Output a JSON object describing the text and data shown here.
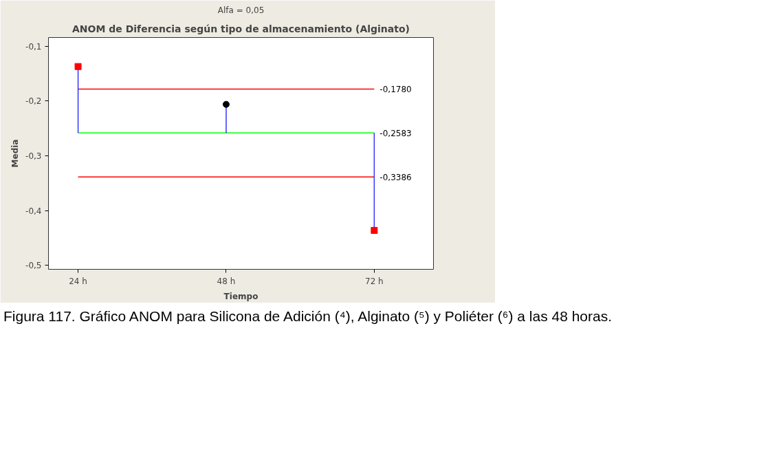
{
  "chart_data": {
    "type": "scatter",
    "title": "ANOM de Diferencia según tipo de almacenamiento (Alginato)",
    "subtitle": "Alfa = 0,05",
    "xlabel": "Tiempo",
    "ylabel": "Media",
    "categories": [
      "24 h",
      "48 h",
      "72 h"
    ],
    "series": [
      {
        "color": "#ff0000",
        "marker": "square",
        "values": [
          -0.137,
          null,
          -0.436
        ],
        "errors": [
          [
            -0.2583,
            -0.137
          ],
          null,
          [
            -0.436,
            -0.2583
          ]
        ]
      },
      {
        "color": "#000000",
        "marker": "circle",
        "values": [
          null,
          -0.206,
          null
        ],
        "errors": [
          null,
          [
            -0.2583,
            -0.206
          ],
          null
        ]
      }
    ],
    "ylim": [
      -0.507,
      -0.084
    ],
    "yticks": [
      {
        "value": -0.5,
        "label": "-0,5"
      },
      {
        "value": -0.4,
        "label": "-0,4"
      },
      {
        "value": -0.3,
        "label": "-0,3"
      },
      {
        "value": -0.2,
        "label": "-0,2"
      },
      {
        "value": -0.1,
        "label": "-0,1"
      }
    ],
    "ref_lines": [
      {
        "axis": "y",
        "value": -0.178,
        "label": "-0,1780",
        "color": "#ff0000"
      },
      {
        "axis": "y",
        "value": -0.2583,
        "label": "-0,2583",
        "color": "#00ff00"
      },
      {
        "axis": "y",
        "value": -0.3386,
        "label": "-0,3386",
        "color": "#ff0000"
      }
    ],
    "annotations": [
      "Figura 117. Gráfico ANOM para Silicona de Adición (⁴), Alginato (⁵) y Poliéter (⁶) a las 48 horas."
    ],
    "grid": false
  }
}
